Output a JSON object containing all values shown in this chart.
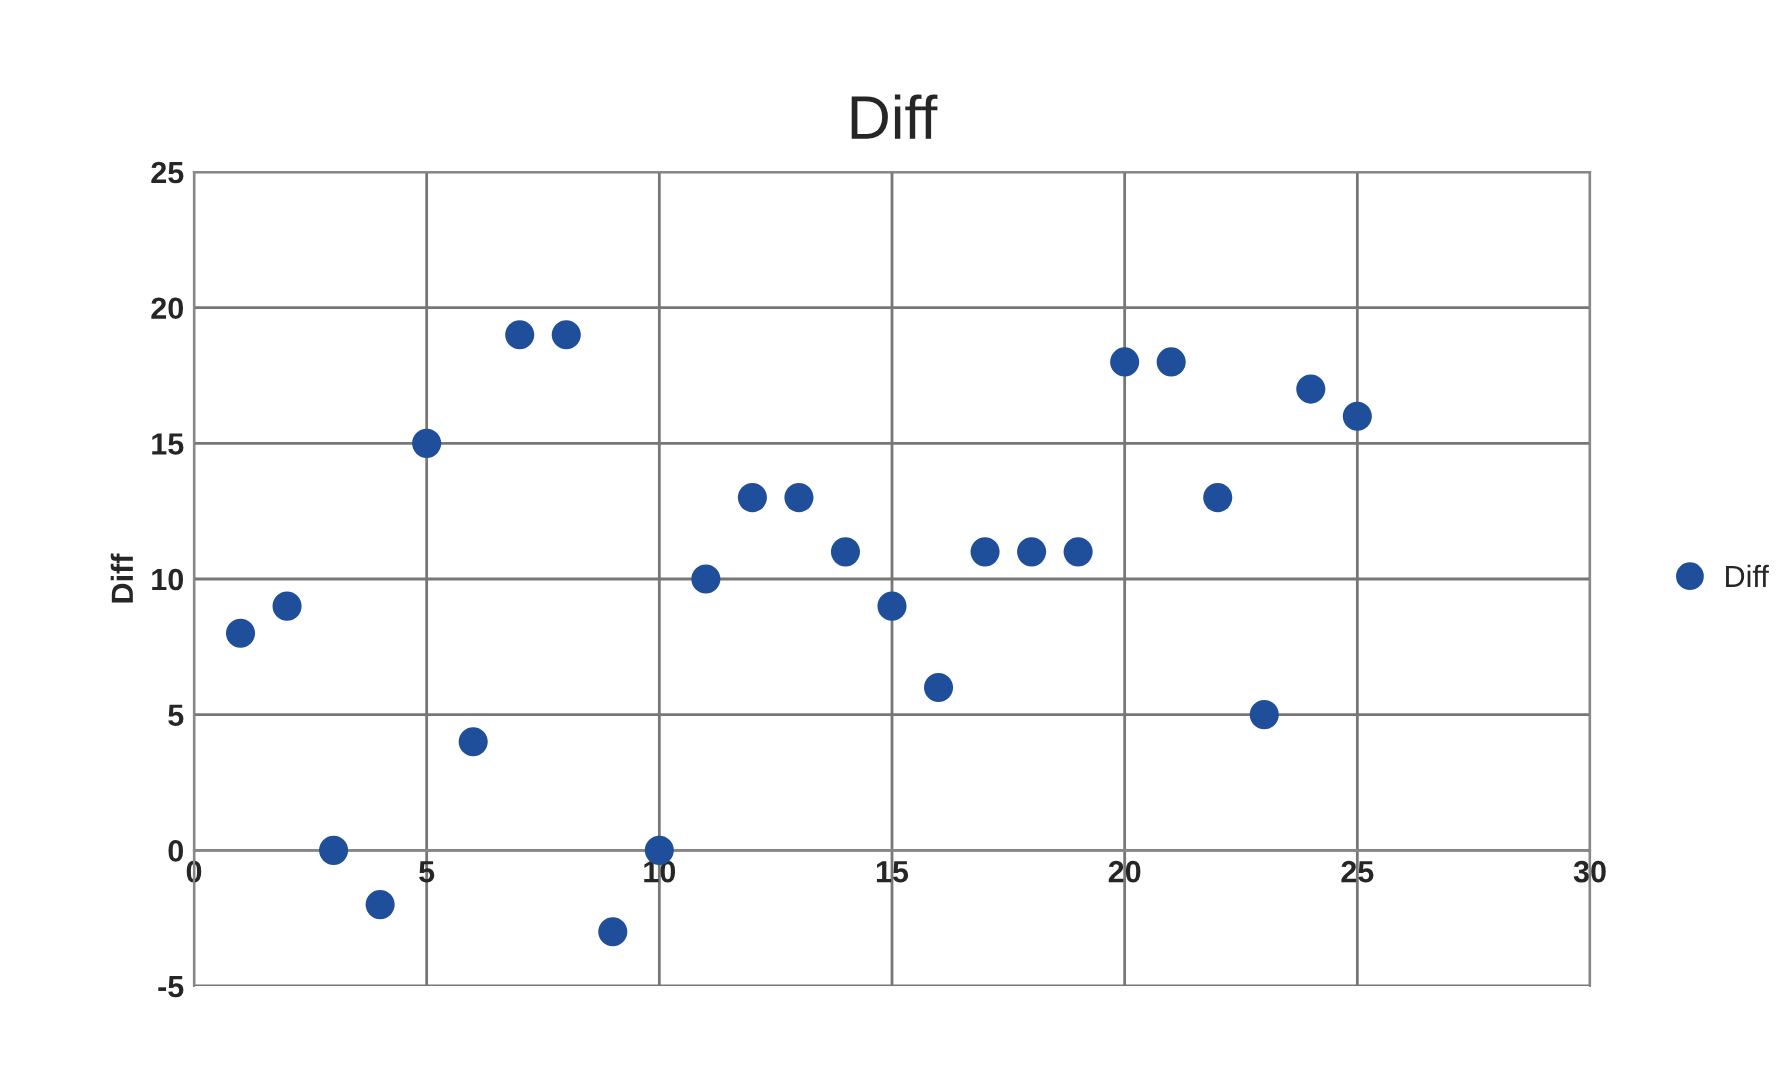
{
  "chart_data": {
    "type": "scatter",
    "title": "Diff",
    "ylabel": "Diff",
    "x": [
      1,
      2,
      3,
      4,
      5,
      6,
      7,
      8,
      9,
      10,
      11,
      12,
      13,
      14,
      15,
      16,
      17,
      18,
      19,
      20,
      21,
      22,
      23,
      24,
      25
    ],
    "series": [
      {
        "name": "Diff",
        "color": "#1f4e9a",
        "values": [
          8,
          9,
          0,
          -2,
          15,
          4,
          19,
          19,
          -3,
          0,
          10,
          13,
          13,
          11,
          9,
          6,
          11,
          11,
          11,
          18,
          18,
          13,
          5,
          17,
          16
        ]
      }
    ],
    "xlim": [
      0,
      30
    ],
    "xticks": [
      0,
      5,
      10,
      15,
      20,
      25,
      30
    ],
    "ylim": [
      -5,
      25
    ],
    "yticks": [
      -5,
      0,
      5,
      10,
      15,
      20,
      25
    ],
    "grid": true,
    "legend": "right",
    "marker": "circle"
  }
}
